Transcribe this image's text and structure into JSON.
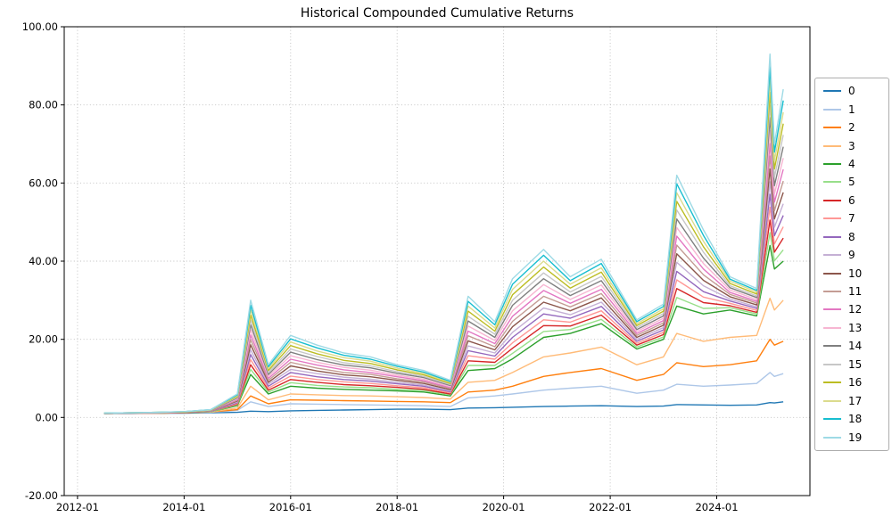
{
  "chart_data": {
    "type": "line",
    "title": "Historical Compounded Cumulative Returns",
    "xlabel": "",
    "ylabel": "",
    "grid": true,
    "legend_position": "right-outside",
    "xlim": [
      "2011-10",
      "2025-10"
    ],
    "ylim": [
      -20,
      100
    ],
    "x_ticks": [
      "2012-01",
      "2014-01",
      "2016-01",
      "2018-01",
      "2020-01",
      "2022-01",
      "2024-01"
    ],
    "y_ticks": [
      100,
      80,
      60,
      40,
      20,
      0,
      -20
    ],
    "y_tick_labels": [
      "100.00",
      "80.00",
      "60.00",
      "40.00",
      "20.00",
      "0.00",
      "-20.00"
    ],
    "x": [
      "2012-07",
      "2013-01",
      "2013-07",
      "2014-01",
      "2014-07",
      "2015-01",
      "2015-04",
      "2015-08",
      "2016-01",
      "2016-07",
      "2017-01",
      "2017-07",
      "2018-01",
      "2018-07",
      "2019-01",
      "2019-05",
      "2019-11",
      "2020-03",
      "2020-10",
      "2021-04",
      "2021-11",
      "2022-07",
      "2023-01",
      "2023-04",
      "2023-10",
      "2024-04",
      "2024-10",
      "2025-01",
      "2025-02",
      "2025-04"
    ],
    "series": [
      {
        "name": "0",
        "color": "#1f77b4",
        "values": [
          1.0,
          1.0,
          1.1,
          1.1,
          1.2,
          1.3,
          1.6,
          1.5,
          1.7,
          1.8,
          1.9,
          2.0,
          2.1,
          2.1,
          2.0,
          2.4,
          2.5,
          2.6,
          2.8,
          2.9,
          3.0,
          2.8,
          2.9,
          3.3,
          3.2,
          3.1,
          3.2,
          3.8,
          3.7,
          4.0
        ]
      },
      {
        "name": "1",
        "color": "#aec7e8",
        "values": [
          1.0,
          1.1,
          1.1,
          1.2,
          1.3,
          1.8,
          4.0,
          2.8,
          3.5,
          3.4,
          3.3,
          3.2,
          3.1,
          3.0,
          2.8,
          5.0,
          5.5,
          6.0,
          7.0,
          7.5,
          8.0,
          6.2,
          7.0,
          8.5,
          8.0,
          8.3,
          8.7,
          11.5,
          10.5,
          11.2
        ]
      },
      {
        "name": "2",
        "color": "#ff7f0e",
        "values": [
          1.0,
          1.1,
          1.1,
          1.2,
          1.4,
          2.0,
          5.5,
          3.5,
          4.5,
          4.4,
          4.3,
          4.2,
          4.1,
          4.0,
          3.8,
          6.5,
          7.0,
          8.0,
          10.5,
          11.5,
          12.5,
          9.5,
          11.0,
          14.0,
          13.0,
          13.5,
          14.5,
          20.0,
          18.5,
          19.5
        ]
      },
      {
        "name": "3",
        "color": "#ffbb78",
        "values": [
          1.0,
          1.1,
          1.1,
          1.2,
          1.4,
          2.4,
          8.0,
          4.5,
          6.0,
          5.8,
          5.6,
          5.5,
          5.3,
          5.1,
          4.7,
          9.0,
          9.5,
          11.5,
          15.5,
          16.5,
          18.0,
          13.5,
          15.5,
          21.5,
          19.5,
          20.5,
          21.0,
          30.5,
          27.5,
          30.0
        ]
      },
      {
        "name": "4",
        "color": "#2ca02c",
        "values": [
          1.0,
          1.1,
          1.1,
          1.2,
          1.5,
          3.0,
          11.0,
          6.0,
          8.0,
          7.5,
          7.2,
          7.0,
          6.8,
          6.5,
          5.5,
          12.0,
          12.5,
          15.0,
          20.5,
          21.5,
          24.0,
          17.5,
          20.0,
          28.5,
          26.5,
          27.5,
          26.0,
          44.0,
          38.0,
          40.0
        ]
      },
      {
        "name": "5",
        "color": "#98df8a",
        "values": [
          1.0,
          1.1,
          1.1,
          1.2,
          1.5,
          3.2,
          12.3,
          6.5,
          8.9,
          8.2,
          7.8,
          7.6,
          7.2,
          6.9,
          5.8,
          13.3,
          13.3,
          16.4,
          22.0,
          22.5,
          25.1,
          18.0,
          20.6,
          30.7,
          27.9,
          28.1,
          26.5,
          47.3,
          40.1,
          42.9
        ]
      },
      {
        "name": "6",
        "color": "#d62728",
        "values": [
          1.0,
          1.1,
          1.1,
          1.2,
          1.6,
          3.4,
          13.5,
          7.0,
          9.7,
          9.0,
          8.4,
          8.1,
          7.7,
          7.2,
          6.0,
          14.5,
          14.1,
          17.7,
          23.5,
          23.4,
          26.2,
          18.5,
          21.2,
          33.0,
          29.4,
          28.6,
          26.9,
          50.5,
          42.3,
          45.9
        ]
      },
      {
        "name": "7",
        "color": "#ff9896",
        "values": [
          1.0,
          1.1,
          1.1,
          1.3,
          1.6,
          3.6,
          14.8,
          7.5,
          10.6,
          9.7,
          9.1,
          8.7,
          8.1,
          7.6,
          6.3,
          15.8,
          14.9,
          19.1,
          25.0,
          24.4,
          27.3,
          19.0,
          21.8,
          35.2,
          30.8,
          29.2,
          27.4,
          53.8,
          44.4,
          48.8
        ]
      },
      {
        "name": "8",
        "color": "#9467bd",
        "values": [
          1.0,
          1.1,
          1.2,
          1.3,
          1.6,
          3.8,
          16.1,
          8.0,
          11.5,
          10.4,
          9.7,
          9.3,
          8.6,
          8.0,
          6.6,
          17.1,
          15.7,
          20.5,
          26.5,
          25.4,
          28.4,
          19.5,
          22.4,
          37.4,
          32.2,
          29.8,
          27.9,
          57.1,
          46.5,
          51.7
        ]
      },
      {
        "name": "9",
        "color": "#c5b0d5",
        "values": [
          1.0,
          1.1,
          1.2,
          1.3,
          1.7,
          4.0,
          17.3,
          8.5,
          12.3,
          11.2,
          10.3,
          9.8,
          9.0,
          8.3,
          6.8,
          18.3,
          16.5,
          21.8,
          28.0,
          26.3,
          29.5,
          20.0,
          23.0,
          39.7,
          33.7,
          30.3,
          28.3,
          60.3,
          48.7,
          54.7
        ]
      },
      {
        "name": "10",
        "color": "#8c564b",
        "values": [
          1.0,
          1.1,
          1.2,
          1.3,
          1.7,
          4.2,
          18.6,
          9.0,
          13.2,
          11.9,
          10.9,
          10.4,
          9.5,
          8.7,
          7.1,
          19.6,
          17.3,
          23.2,
          29.5,
          27.3,
          30.6,
          20.5,
          23.6,
          41.9,
          35.1,
          30.9,
          28.8,
          63.6,
          50.8,
          57.6
        ]
      },
      {
        "name": "11",
        "color": "#c49c94",
        "values": [
          1.0,
          1.1,
          1.2,
          1.3,
          1.7,
          4.4,
          19.9,
          9.5,
          14.1,
          12.6,
          11.5,
          11.0,
          9.9,
          9.1,
          7.4,
          20.9,
          18.1,
          24.6,
          31.0,
          28.3,
          31.7,
          21.0,
          24.2,
          44.1,
          36.5,
          31.5,
          29.3,
          66.9,
          52.9,
          60.5
        ]
      },
      {
        "name": "12",
        "color": "#e377c2",
        "values": [
          1.1,
          1.2,
          1.2,
          1.4,
          1.8,
          4.6,
          21.1,
          10.0,
          14.9,
          13.4,
          12.2,
          11.5,
          10.4,
          9.4,
          7.6,
          22.1,
          18.9,
          25.9,
          32.5,
          29.2,
          32.8,
          21.5,
          24.8,
          46.4,
          38.0,
          32.0,
          29.7,
          70.1,
          55.1,
          63.5
        ]
      },
      {
        "name": "13",
        "color": "#f7b6d2",
        "values": [
          1.1,
          1.2,
          1.2,
          1.4,
          1.8,
          4.8,
          22.4,
          10.5,
          15.8,
          14.1,
          12.8,
          12.1,
          10.8,
          9.8,
          7.9,
          23.4,
          19.7,
          27.3,
          34.0,
          30.2,
          33.9,
          22.0,
          25.4,
          48.6,
          39.4,
          32.6,
          30.2,
          73.4,
          57.2,
          66.4
        ]
      },
      {
        "name": "14",
        "color": "#7f7f7f",
        "values": [
          1.1,
          1.2,
          1.2,
          1.4,
          1.8,
          5.0,
          23.7,
          11.0,
          16.7,
          14.8,
          13.4,
          12.7,
          11.3,
          10.2,
          8.2,
          24.7,
          20.5,
          28.7,
          35.5,
          31.2,
          35.0,
          22.5,
          26.0,
          50.8,
          40.8,
          33.2,
          30.7,
          76.7,
          59.3,
          69.3
        ]
      },
      {
        "name": "15",
        "color": "#c7c7c7",
        "values": [
          1.1,
          1.2,
          1.2,
          1.4,
          1.9,
          5.2,
          24.9,
          11.5,
          17.5,
          15.6,
          14.0,
          13.2,
          11.7,
          10.5,
          8.4,
          25.9,
          21.3,
          30.0,
          37.0,
          32.1,
          36.1,
          23.0,
          26.6,
          53.1,
          42.3,
          33.7,
          31.1,
          79.9,
          61.5,
          72.3
        ]
      },
      {
        "name": "16",
        "color": "#bcbd22",
        "values": [
          1.1,
          1.2,
          1.3,
          1.4,
          1.9,
          5.4,
          26.2,
          12.0,
          18.4,
          16.3,
          14.6,
          13.8,
          12.2,
          10.9,
          8.7,
          27.2,
          22.1,
          31.4,
          38.5,
          33.1,
          37.2,
          23.5,
          27.2,
          55.3,
          43.7,
          34.3,
          31.6,
          83.2,
          63.6,
          75.2
        ]
      },
      {
        "name": "17",
        "color": "#dbdb8d",
        "values": [
          1.1,
          1.2,
          1.3,
          1.5,
          1.9,
          5.6,
          27.5,
          12.5,
          19.3,
          17.0,
          15.3,
          14.4,
          12.6,
          11.3,
          9.0,
          28.5,
          22.9,
          32.8,
          40.0,
          34.1,
          38.3,
          24.0,
          27.8,
          57.5,
          45.1,
          34.9,
          32.1,
          86.5,
          65.7,
          78.1
        ]
      },
      {
        "name": "18",
        "color": "#17becf",
        "values": [
          1.1,
          1.2,
          1.3,
          1.5,
          2.0,
          5.8,
          28.7,
          13.0,
          20.1,
          17.8,
          15.9,
          14.9,
          13.1,
          11.6,
          9.2,
          29.7,
          23.7,
          34.1,
          41.5,
          35.0,
          39.4,
          24.5,
          28.4,
          59.8,
          46.6,
          35.4,
          32.5,
          89.7,
          67.9,
          81.1
        ]
      },
      {
        "name": "19",
        "color": "#9edae5",
        "values": [
          1.1,
          1.2,
          1.3,
          1.5,
          2.0,
          6.0,
          30.0,
          13.5,
          21.0,
          18.5,
          16.5,
          15.5,
          13.5,
          12.0,
          9.5,
          31.0,
          24.5,
          35.5,
          43.0,
          36.0,
          40.5,
          25.0,
          29.0,
          62.0,
          48.0,
          36.0,
          33.0,
          93.0,
          70.0,
          84.0
        ]
      }
    ]
  }
}
